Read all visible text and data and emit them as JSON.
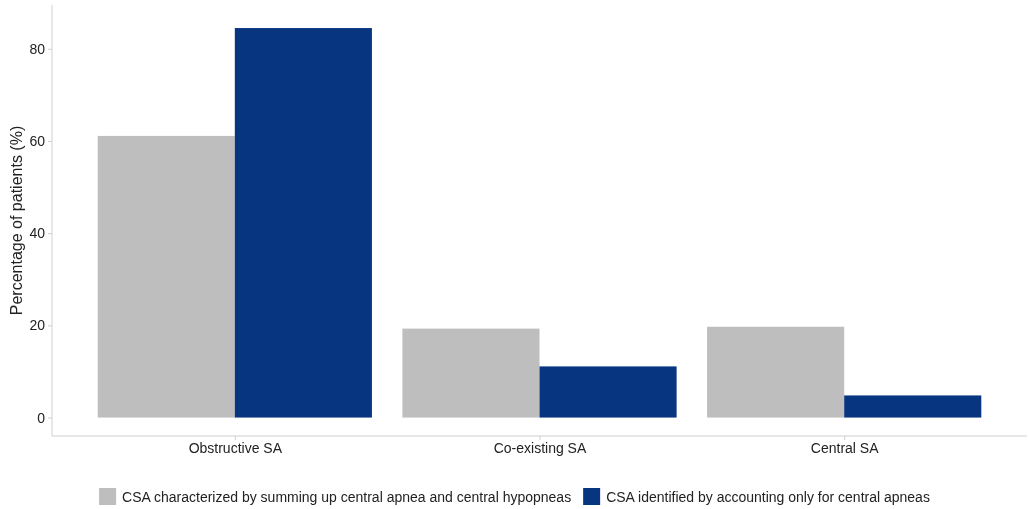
{
  "chart_data": {
    "type": "bar",
    "ylabel": "Percentage of patients (%)",
    "categories": [
      "Obstructive SA",
      "Co-existing SA",
      "Central SA"
    ],
    "series": [
      {
        "name": "CSA characterized by summing up central apnea and central hypopneas",
        "color": "#bebebe",
        "values": [
          61.1,
          19.3,
          19.7
        ]
      },
      {
        "name": "CSA identified by accounting only for central apneas",
        "color": "#08357f",
        "values": [
          84.5,
          11.1,
          4.8
        ]
      }
    ],
    "ylim": [
      -4,
      89.5
    ],
    "yticks": [
      0,
      20,
      40,
      60,
      80
    ],
    "grid": false,
    "legend": "bottom"
  }
}
